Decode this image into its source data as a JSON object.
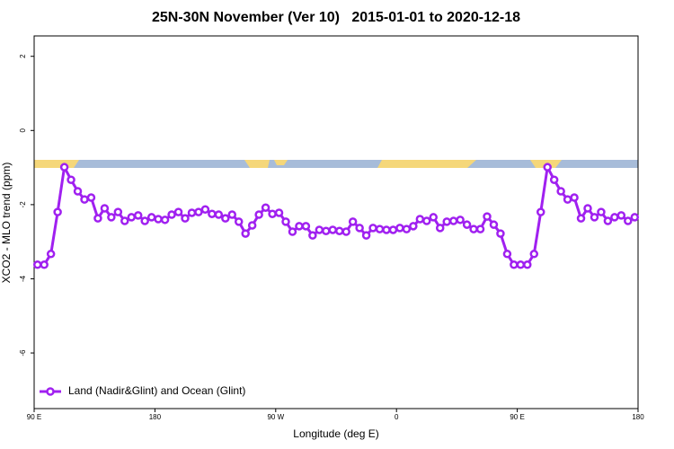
{
  "chart_data": {
    "type": "line",
    "title": "25N-30N November (Ver 10)   2015-01-01 to 2020-12-18",
    "x_label": "Longitude (deg E)",
    "y_label": "XCO2 - MLO trend (ppm)",
    "xlim": [
      90,
      540
    ],
    "ylim": [
      -7.5,
      2.55
    ],
    "xticks": [
      {
        "value": 90,
        "label": "90 E"
      },
      180,
      {
        "value": 270,
        "label": "90 W"
      },
      {
        "value": 360,
        "label": "0"
      },
      {
        "value": 450,
        "label": "90 E"
      },
      {
        "value": 540,
        "label": "180"
      }
    ],
    "yticks": [
      -6,
      -4,
      -2,
      0,
      2
    ],
    "legend": "bottom-left",
    "x": [
      92.5,
      97.5,
      102.5,
      107.5,
      112.5,
      117.5,
      122.5,
      127.5,
      132.5,
      137.5,
      142.5,
      147.5,
      152.5,
      157.5,
      162.5,
      167.5,
      172.5,
      177.5,
      182.5,
      187.5,
      192.5,
      197.5,
      202.5,
      207.5,
      212.5,
      217.5,
      222.5,
      227.5,
      232.5,
      237.5,
      242.5,
      247.5,
      252.5,
      257.5,
      262.5,
      267.5,
      272.5,
      277.5,
      282.5,
      287.5,
      292.5,
      297.5,
      302.5,
      307.5,
      312.5,
      317.5,
      322.5,
      327.5,
      332.5,
      337.5,
      342.5,
      347.5,
      352.5,
      357.5,
      362.5,
      367.5,
      372.5,
      377.5,
      382.5,
      387.5,
      392.5,
      397.5,
      402.5,
      407.5,
      412.5,
      417.5,
      422.5,
      427.5,
      432.5,
      437.5,
      442.5,
      447.5,
      452.5,
      457.5,
      462.5,
      467.5,
      472.5,
      477.5,
      482.5,
      487.5,
      492.5,
      497.5,
      502.5,
      507.5,
      512.5,
      517.5,
      522.5,
      527.5,
      532.5,
      537.5
    ],
    "series": [
      {
        "name": "Land (Nadir&Glint) and Ocean (Glint)",
        "color": "#a020f0",
        "values": [
          -3.62,
          -3.62,
          -3.33,
          -2.2,
          -0.99,
          -1.33,
          -1.64,
          -1.86,
          -1.81,
          -2.37,
          -2.1,
          -2.34,
          -2.2,
          -2.44,
          -2.34,
          -2.29,
          -2.44,
          -2.34,
          -2.39,
          -2.41,
          -2.27,
          -2.2,
          -2.37,
          -2.22,
          -2.2,
          -2.13,
          -2.25,
          -2.27,
          -2.37,
          -2.27,
          -2.46,
          -2.78,
          -2.56,
          -2.27,
          -2.08,
          -2.25,
          -2.22,
          -2.46,
          -2.73,
          -2.58,
          -2.58,
          -2.83,
          -2.68,
          -2.71,
          -2.68,
          -2.71,
          -2.73,
          -2.46,
          -2.63,
          -2.83,
          -2.63,
          -2.66,
          -2.68,
          -2.68,
          -2.63,
          -2.66,
          -2.58,
          -2.39,
          -2.44,
          -2.34,
          -2.63,
          -2.46,
          -2.44,
          -2.41,
          -2.54,
          -2.66,
          -2.66,
          -2.32,
          -2.54,
          -2.78,
          -3.33,
          -3.62,
          -3.62,
          -3.62,
          -3.33,
          -2.2,
          -0.99,
          -1.33,
          -1.64,
          -1.86,
          -1.81,
          -2.37,
          -2.1,
          -2.34,
          -2.2,
          -2.44,
          -2.34,
          -2.29,
          -2.44,
          -2.34
        ]
      }
    ]
  }
}
